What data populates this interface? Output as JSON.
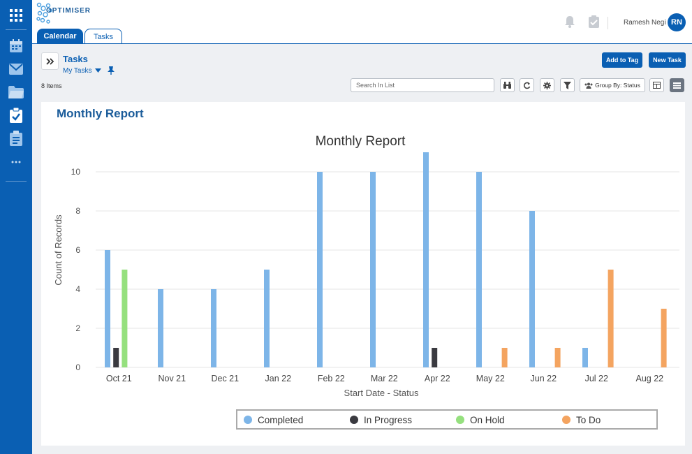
{
  "app": {
    "logo_text": "OPTIMISER",
    "user_name": "Ramesh Negi",
    "user_initials": "RN"
  },
  "tabs": [
    {
      "label": "Calendar",
      "active": false
    },
    {
      "label": "Tasks",
      "active": true
    }
  ],
  "page": {
    "title": "Tasks",
    "view": "My Tasks",
    "items_count": "8 Items"
  },
  "actions": {
    "add_to_tag": "Add to Tag",
    "new_task": "New Task"
  },
  "toolbar": {
    "search_placeholder": "Search In List",
    "group_by": "Group By: Status"
  },
  "report": {
    "card_title": "Monthly Report"
  },
  "chart_data": {
    "type": "bar",
    "title": "Monthly Report",
    "xlabel": "Start Date - Status",
    "ylabel": "Count of Records",
    "ylim": [
      0,
      11
    ],
    "yticks": [
      0,
      2,
      4,
      6,
      8,
      10
    ],
    "grid": true,
    "legend_position": "bottom",
    "categories": [
      "Oct 21",
      "Nov 21",
      "Dec 21",
      "Jan 22",
      "Feb 22",
      "Mar 22",
      "Apr 22",
      "May 22",
      "Jun 22",
      "Jul 22",
      "Aug 22"
    ],
    "series": [
      {
        "name": "Completed",
        "color": "#7db5e8",
        "values": [
          6,
          4,
          4,
          5,
          10,
          10,
          11,
          10,
          8,
          1,
          0
        ]
      },
      {
        "name": "In Progress",
        "color": "#3a3a40",
        "values": [
          1,
          0,
          0,
          0,
          0,
          0,
          1,
          0,
          0,
          0,
          0
        ]
      },
      {
        "name": "On Hold",
        "color": "#95e07e",
        "values": [
          5,
          0,
          0,
          0,
          0,
          0,
          0,
          0,
          0,
          0,
          0
        ]
      },
      {
        "name": "To Do",
        "color": "#f4a460",
        "values": [
          0,
          0,
          0,
          0,
          0,
          0,
          0,
          1,
          1,
          5,
          3
        ]
      }
    ]
  }
}
